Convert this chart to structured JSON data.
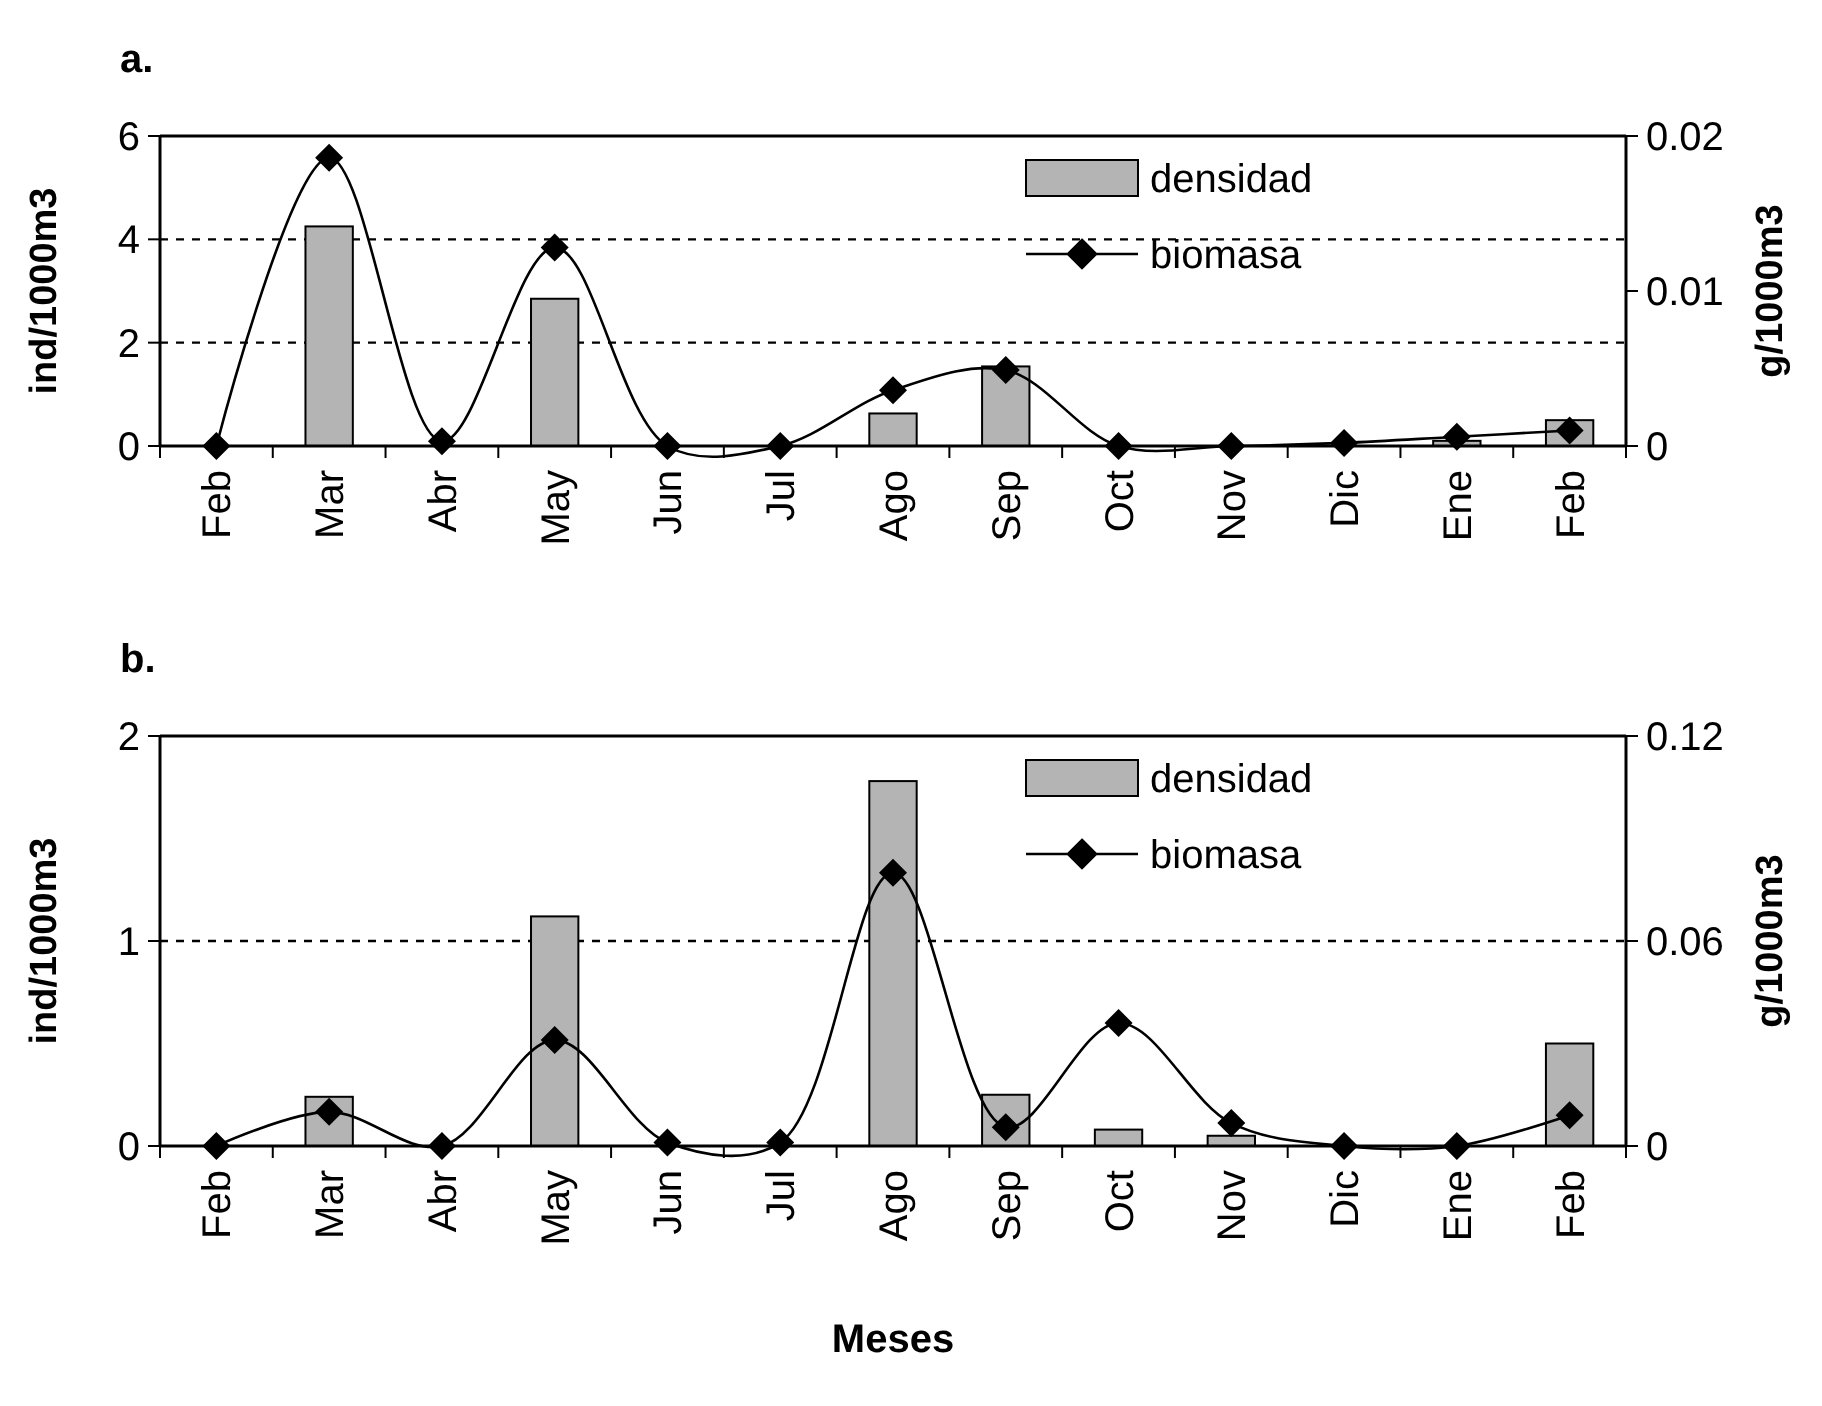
{
  "chart_data": [
    {
      "type": "bar",
      "title": "a.",
      "ylabel": "ind/1000m3",
      "y2label": "g/1000m3",
      "categories": [
        "Feb",
        "Mar",
        "Abr",
        "May",
        "Jun",
        "Jul",
        "Ago",
        "Sep",
        "Oct",
        "Nov",
        "Dic",
        "Ene",
        "Feb"
      ],
      "series": [
        {
          "name": "densidad",
          "color": "#b4b4b4",
          "values": [
            0,
            4.25,
            0,
            2.85,
            0,
            0,
            0.63,
            1.54,
            0,
            0,
            0,
            0.1,
            0.5
          ]
        },
        {
          "name": "biomasa",
          "type": "line",
          "axis": "y2",
          "color": "#000000",
          "values": [
            0,
            0.0186,
            0.0003,
            0.0128,
            0,
            0,
            0.0036,
            0.0049,
            0,
            0,
            0.0002,
            0.0006,
            0.001
          ]
        }
      ],
      "ylim": [
        0,
        6
      ],
      "yticks": [
        0,
        2,
        4,
        6
      ],
      "y2lim": [
        0,
        0.02
      ],
      "y2ticks": [
        0,
        0.01,
        0.02
      ],
      "grid": "y",
      "legend": "top right",
      "marker": "diamond"
    },
    {
      "type": "bar",
      "title": "b.",
      "xlabel": "Meses",
      "ylabel": "ind/1000m3",
      "y2label": "g/1000m3",
      "categories": [
        "Feb",
        "Mar",
        "Abr",
        "May",
        "Jun",
        "Jul",
        "Ago",
        "Sep",
        "Oct",
        "Nov",
        "Dic",
        "Ene",
        "Feb"
      ],
      "series": [
        {
          "name": "densidad",
          "color": "#b4b4b4",
          "values": [
            0,
            0.24,
            0,
            1.12,
            0,
            0,
            1.78,
            0.25,
            0.08,
            0.05,
            0,
            0,
            0.5
          ]
        },
        {
          "name": "biomasa",
          "type": "line",
          "axis": "y2",
          "color": "#000000",
          "values": [
            0,
            0.01,
            0,
            0.031,
            0.001,
            0.001,
            0.08,
            0.0055,
            0.036,
            0.0067,
            0,
            0,
            0.009
          ]
        }
      ],
      "ylim": [
        0,
        2
      ],
      "yticks": [
        0,
        1,
        2
      ],
      "y2lim": [
        0,
        0.12
      ],
      "y2ticks": [
        0,
        0.06,
        0.12
      ],
      "grid": "y",
      "legend": "top right",
      "marker": "diamond"
    }
  ]
}
